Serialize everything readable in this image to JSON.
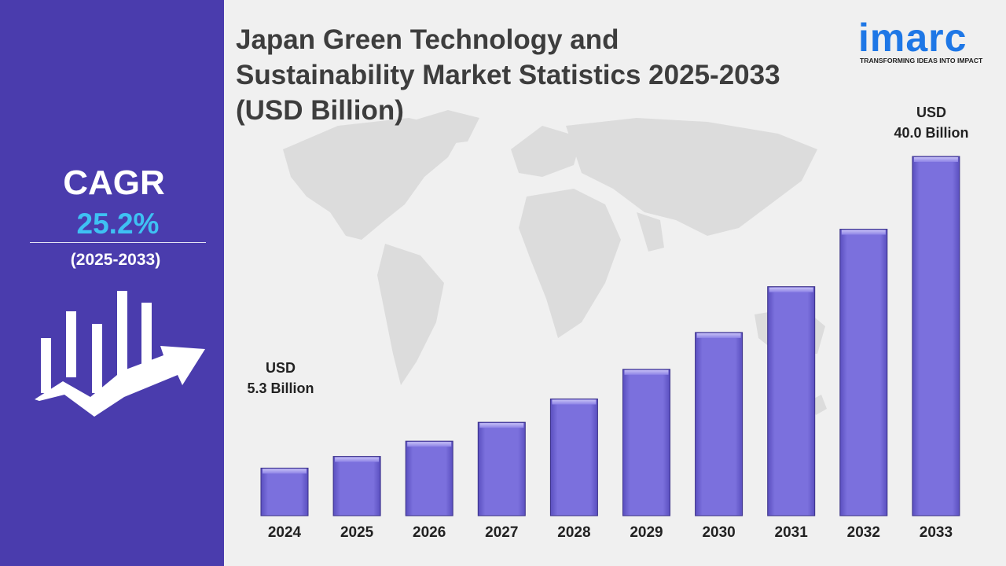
{
  "sidebar": {
    "cagr_label": "CAGR",
    "cagr_value": "25.2%",
    "period": "(2025-2033)"
  },
  "title_lines": [
    "Japan Green Technology and",
    "Sustainability Market Statistics 2025-2033",
    "(USD Billion)"
  ],
  "logo": {
    "name": "imarc",
    "tagline": "TRANSFORMING IDEAS INTO IMPACT"
  },
  "annotations": {
    "start_line1": "USD",
    "start_line2": "5.3 Billion",
    "end_line1": "USD",
    "end_line2": "40.0 Billion"
  },
  "colors": {
    "sidebar": "#4a3cad",
    "cagr_value": "#3ec1f3",
    "bar": "#7b70dd",
    "logo": "#1e77e6"
  },
  "chart_data": {
    "type": "bar",
    "categories": [
      "2024",
      "2025",
      "2026",
      "2027",
      "2028",
      "2029",
      "2030",
      "2031",
      "2032",
      "2033"
    ],
    "values": [
      5.3,
      6.6,
      8.3,
      10.4,
      13.0,
      16.3,
      20.4,
      25.5,
      31.9,
      40.0
    ],
    "title": "Japan Green Technology and Sustainability Market Statistics 2025-2033 (USD Billion)",
    "xlabel": "",
    "ylabel": "",
    "ylim": [
      0,
      40.0
    ],
    "grid": false
  }
}
